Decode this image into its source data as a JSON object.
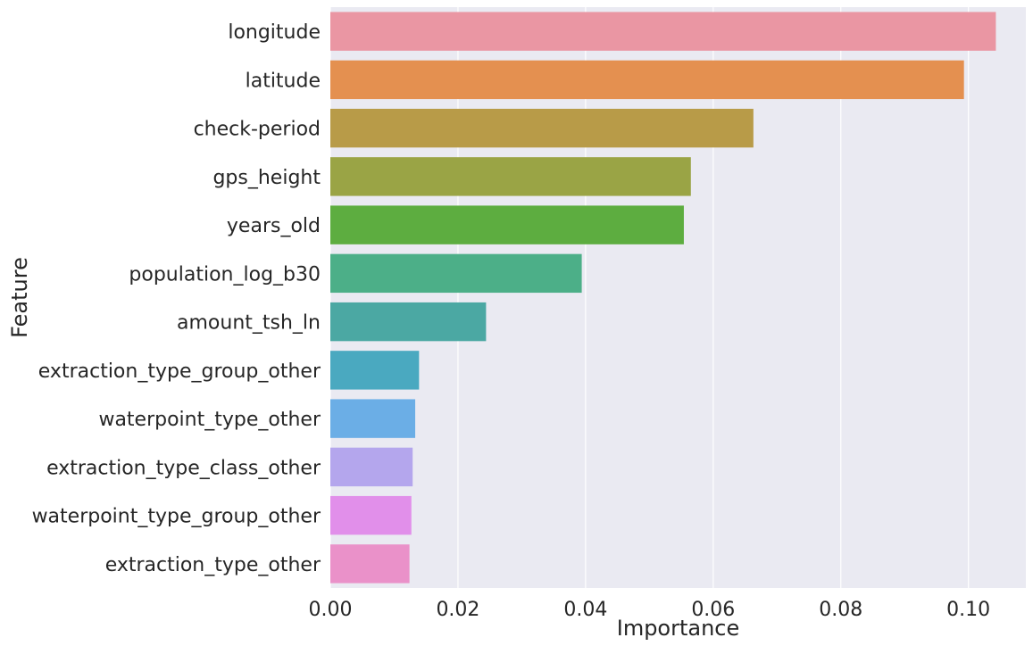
{
  "chart_data": {
    "type": "bar",
    "orientation": "horizontal",
    "title": "",
    "xlabel": "Importance",
    "ylabel": "Feature",
    "xlim": [
      0,
      0.109
    ],
    "xticks": [
      0.0,
      0.02,
      0.04,
      0.06,
      0.08,
      0.1
    ],
    "xtick_labels": [
      "0.00",
      "0.02",
      "0.04",
      "0.06",
      "0.08",
      "0.10"
    ],
    "grid": true,
    "categories": [
      "longitude",
      "latitude",
      "check-period",
      "gps_height",
      "years_old",
      "population_log_b30",
      "amount_tsh_ln",
      "extraction_type_group_other",
      "waterpoint_type_other",
      "extraction_type_class_other",
      "waterpoint_type_group_other",
      "extraction_type_other"
    ],
    "values": [
      0.1043,
      0.0993,
      0.0663,
      0.0565,
      0.0554,
      0.0394,
      0.0244,
      0.0139,
      0.0133,
      0.0129,
      0.0127,
      0.0124
    ],
    "colors": [
      "#ea96a3",
      "#e49050",
      "#b89b48",
      "#9aa445",
      "#5dad40",
      "#4caf88",
      "#4ba8a3",
      "#4aa9c0",
      "#6baee6",
      "#b4a6ed",
      "#e18fea",
      "#ea91c9"
    ]
  },
  "style": {
    "plot_background": "#eaeaf2",
    "grid_color": "#ffffff",
    "text_color": "#262626"
  }
}
